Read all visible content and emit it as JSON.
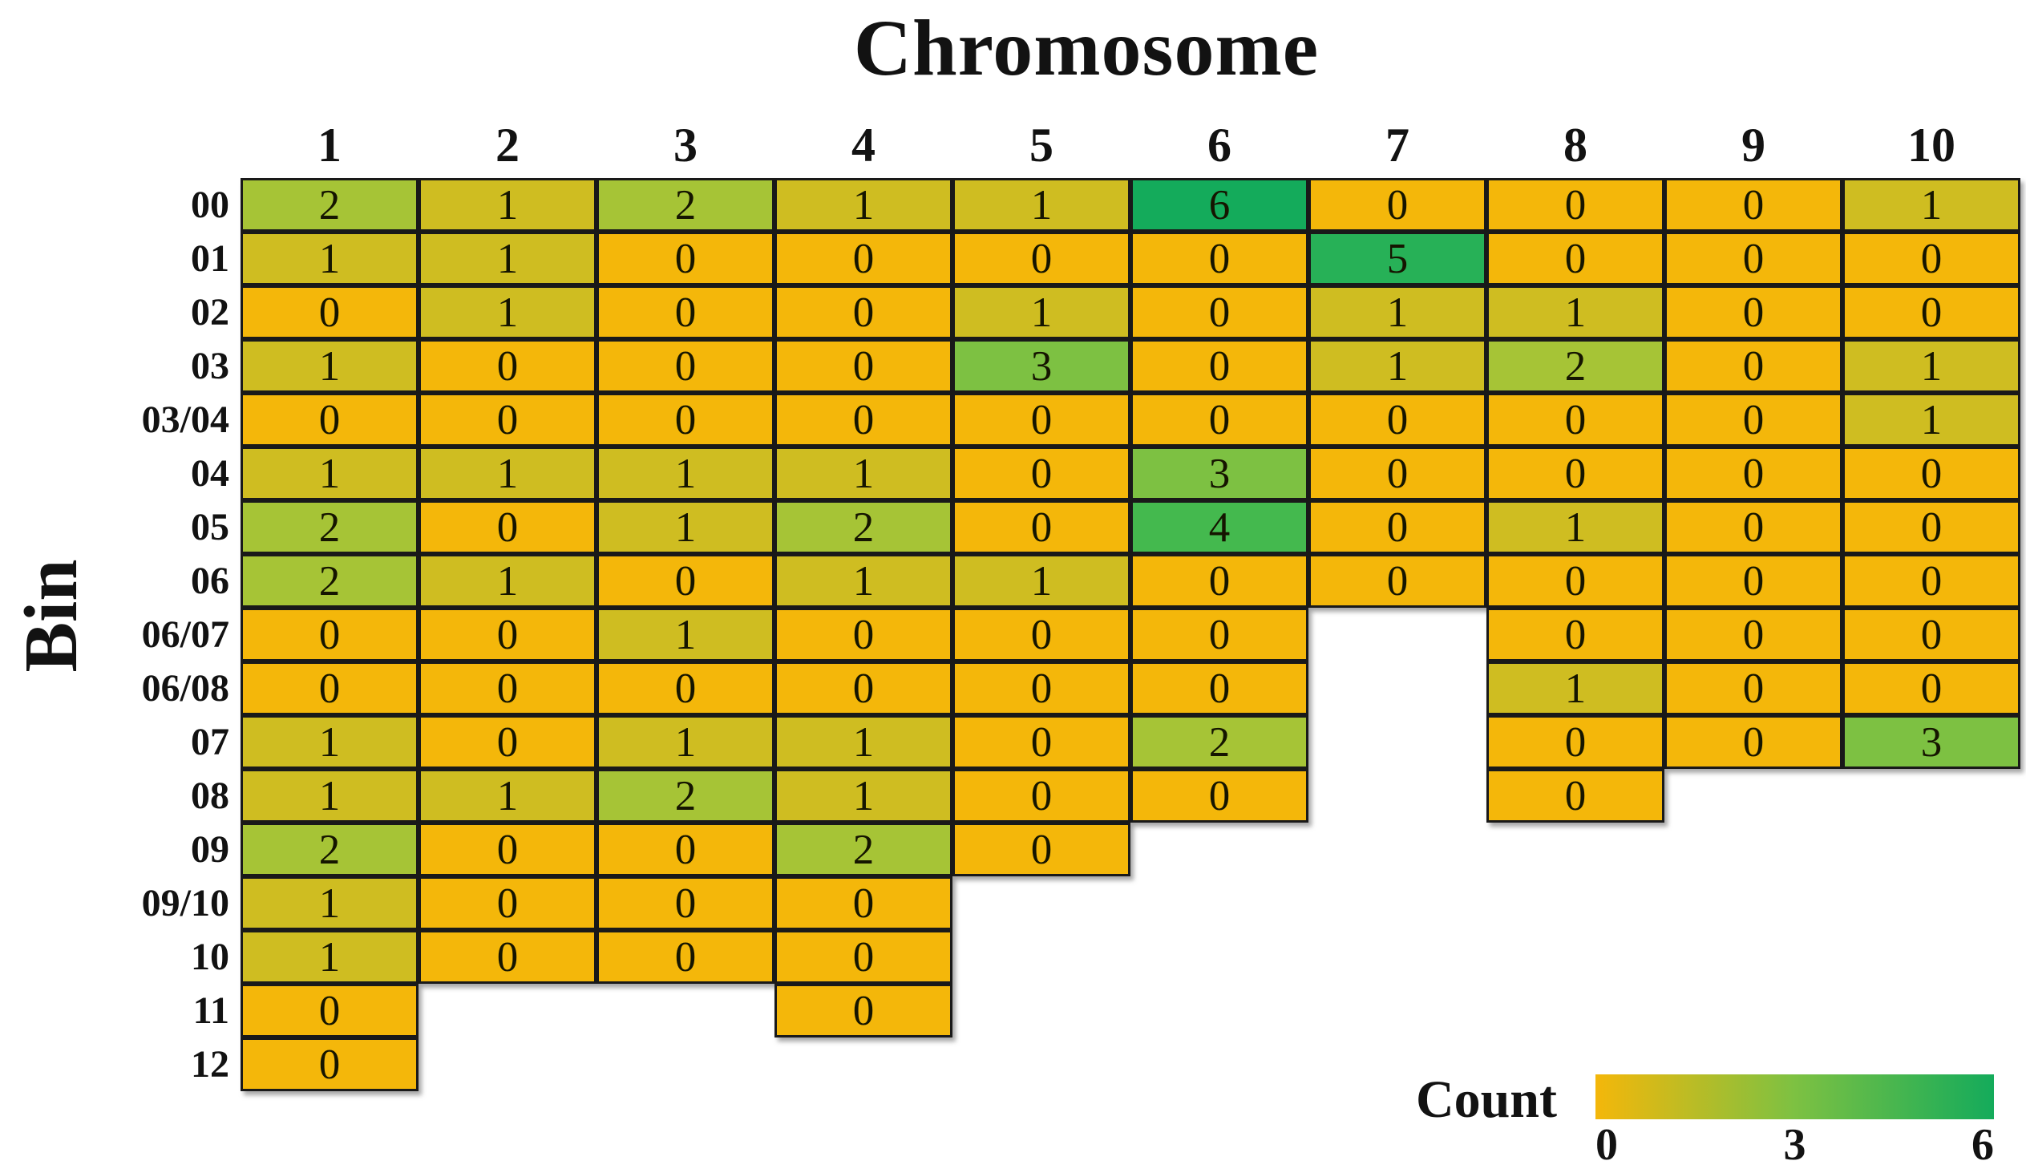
{
  "chart_data": {
    "type": "heatmap",
    "title": "Chromosome",
    "xlabel": "Chromosome",
    "ylabel": "Bin",
    "columns": [
      "1",
      "2",
      "3",
      "4",
      "5",
      "6",
      "7",
      "8",
      "9",
      "10"
    ],
    "rows": [
      "00",
      "01",
      "02",
      "03",
      "03/04",
      "04",
      "05",
      "06",
      "06/07",
      "06/08",
      "07",
      "08",
      "09",
      "09/10",
      "10",
      "11",
      "12"
    ],
    "values": [
      [
        2,
        1,
        2,
        1,
        1,
        6,
        0,
        0,
        0,
        1
      ],
      [
        1,
        1,
        0,
        0,
        0,
        0,
        5,
        0,
        0,
        0
      ],
      [
        0,
        1,
        0,
        0,
        1,
        0,
        1,
        1,
        0,
        0
      ],
      [
        1,
        0,
        0,
        0,
        3,
        0,
        1,
        2,
        0,
        1
      ],
      [
        0,
        0,
        0,
        0,
        0,
        0,
        0,
        0,
        0,
        1
      ],
      [
        1,
        1,
        1,
        1,
        0,
        3,
        0,
        0,
        0,
        0
      ],
      [
        2,
        0,
        1,
        2,
        0,
        4,
        0,
        1,
        0,
        0
      ],
      [
        2,
        1,
        0,
        1,
        1,
        0,
        0,
        0,
        0,
        0
      ],
      [
        0,
        0,
        1,
        0,
        0,
        0,
        null,
        0,
        0,
        0
      ],
      [
        0,
        0,
        0,
        0,
        0,
        0,
        null,
        1,
        0,
        0
      ],
      [
        1,
        0,
        1,
        1,
        0,
        2,
        null,
        0,
        0,
        3
      ],
      [
        1,
        1,
        2,
        1,
        0,
        0,
        null,
        0,
        null,
        null
      ],
      [
        2,
        0,
        0,
        2,
        0,
        null,
        null,
        null,
        null,
        null
      ],
      [
        1,
        0,
        0,
        0,
        null,
        null,
        null,
        null,
        null,
        null
      ],
      [
        1,
        0,
        0,
        0,
        null,
        null,
        null,
        null,
        null,
        null
      ],
      [
        0,
        null,
        null,
        0,
        null,
        null,
        null,
        null,
        null,
        null
      ],
      [
        0,
        null,
        null,
        null,
        null,
        null,
        null,
        null,
        null,
        null
      ]
    ],
    "value_range": [
      0,
      6
    ],
    "palette": {
      "0": "#F4B70A",
      "1": "#CFBD21",
      "2": "#A6C436",
      "3": "#7DC142",
      "4": "#44B94E",
      "5": "#27B157",
      "6": "#14AB5B"
    },
    "grid_line_color": "#191919",
    "legend_position": "bottom-right"
  },
  "legend": {
    "title": "Count",
    "ticks": [
      "0",
      "3",
      "6"
    ],
    "gradient": [
      "#F4B70A",
      "#7DC142",
      "#14AB5B"
    ]
  }
}
